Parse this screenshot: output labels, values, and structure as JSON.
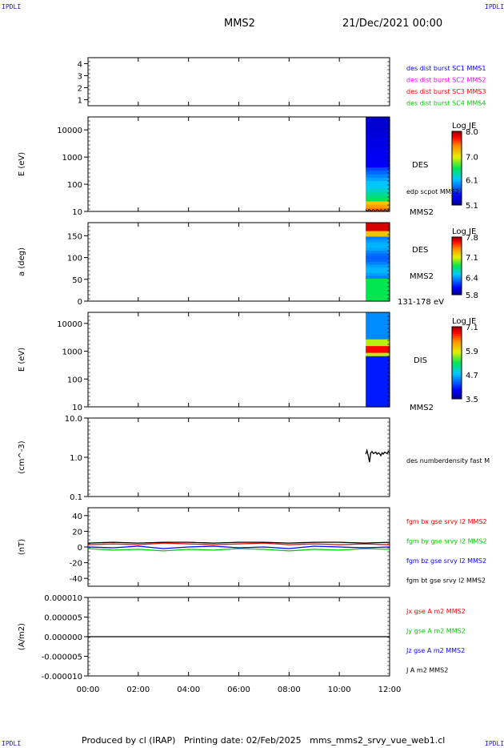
{
  "corners": {
    "tl": "IPDLI",
    "tr": "IPDLI",
    "bl": "IPDLI",
    "br": "IPDLI"
  },
  "header": {
    "spacecraft": "MMS2",
    "date": "21/Dec/2021 00:00"
  },
  "footer": {
    "text": "Produced by cl (IRAP)   Printing date: 02/Feb/2025   mms_mms2_srvy_vue_web1.cl"
  },
  "time_axis": {
    "ticks": [
      "00:00",
      "02:00",
      "04:00",
      "06:00",
      "08:00",
      "10:00",
      "12:00"
    ],
    "range_hours": [
      0,
      12
    ]
  },
  "colors": {
    "mms1": "#0000ff",
    "mms2": "#ff00ff",
    "mms3": "#ff0000",
    "mms4": "#00cc00",
    "bx": "#ff0000",
    "by": "#00cc00",
    "bz": "#0000ff",
    "bt": "#000000",
    "jx": "#ff0000",
    "jy": "#00cc00",
    "jz": "#0000ff",
    "j": "#000000"
  },
  "chart_data": [
    {
      "type": "line",
      "id": "availability",
      "ylim": [
        0.5,
        4.5
      ],
      "yticks": [
        "1",
        "2",
        "3",
        "4"
      ],
      "legend": [
        {
          "label": "des dist burst SC1 MMS1",
          "color": "#0000ff"
        },
        {
          "label": "des dist burst SC2 MMS2",
          "color": "#ff00ff"
        },
        {
          "label": "des dist burst SC3 MMS3",
          "color": "#ff0000"
        },
        {
          "label": "des dist burst SC4 MMS4",
          "color": "#00cc00"
        }
      ]
    },
    {
      "type": "heatmap",
      "id": "des-energy",
      "ylabel": "E (eV)",
      "yscale": "log",
      "ylim": [
        10,
        30000
      ],
      "yticks": [
        "10000",
        "1000",
        "100",
        "10"
      ],
      "data_window_hours": [
        11.05,
        12.0
      ],
      "labels": [
        "DES",
        "edp scpot MMS2",
        "MMS2"
      ],
      "colorbar": {
        "title": "Log JE",
        "ticks": [
          "8.0",
          "7.0",
          "6.1",
          "5.1"
        ],
        "range": [
          5.1,
          8.0
        ]
      }
    },
    {
      "type": "heatmap",
      "id": "des-pitch",
      "ylabel": "a (deg)",
      "ylim": [
        0,
        180
      ],
      "yticks": [
        "150",
        "100",
        "50",
        "0"
      ],
      "data_window_hours": [
        11.05,
        12.0
      ],
      "labels": [
        "DES",
        "MMS2",
        "131-178 eV"
      ],
      "colorbar": {
        "title": "Log JE",
        "ticks": [
          "7.8",
          "7.1",
          "6.4",
          "5.8"
        ],
        "range": [
          5.8,
          7.8
        ]
      }
    },
    {
      "type": "heatmap",
      "id": "dis-energy",
      "ylabel": "E (eV)",
      "yscale": "log",
      "ylim": [
        10,
        25000
      ],
      "yticks": [
        "10000",
        "1000",
        "100",
        "10"
      ],
      "data_window_hours": [
        11.05,
        12.0
      ],
      "labels": [
        "DIS",
        "MMS2"
      ],
      "colorbar": {
        "title": "Log JE",
        "ticks": [
          "7.1",
          "5.9",
          "4.7",
          "3.5"
        ],
        "range": [
          3.5,
          7.1
        ]
      }
    },
    {
      "type": "line",
      "id": "density",
      "ylabel": "(cm^-3)",
      "yscale": "log",
      "ylim": [
        0.1,
        10
      ],
      "yticks": [
        "10.0",
        "1.0",
        "0.1"
      ],
      "series": [
        {
          "name": "des numberdensity fast M",
          "color": "#000000",
          "x": [
            11.05,
            11.1,
            11.15,
            11.2,
            11.25,
            11.3,
            11.35,
            11.4,
            11.45,
            11.5,
            11.55,
            11.6,
            11.65,
            11.7,
            11.75,
            11.8,
            11.85,
            11.9,
            11.95,
            12.0
          ],
          "y": [
            1.2,
            1.5,
            1.1,
            0.75,
            1.3,
            1.4,
            1.25,
            1.3,
            1.35,
            1.2,
            1.3,
            1.25,
            1.1,
            1.3,
            1.2,
            1.35,
            1.3,
            1.25,
            1.4,
            1.3
          ]
        }
      ]
    },
    {
      "type": "line",
      "id": "magnetic-field",
      "ylabel": "(nT)",
      "ylim": [
        -50,
        50
      ],
      "yticks": [
        "40",
        "20",
        "0",
        "-20",
        "-40"
      ],
      "series": [
        {
          "name": "fgm bx gse srvy l2 MMS2",
          "color": "#ff0000",
          "x": [
            0,
            1,
            2,
            3,
            4,
            5,
            6,
            7,
            8,
            9,
            10,
            11,
            12
          ],
          "y": [
            3,
            4,
            3,
            5,
            4,
            3,
            4,
            5,
            3,
            4,
            3,
            4,
            3
          ]
        },
        {
          "name": "fgm by gse srvy l2 MMS2",
          "color": "#00cc00",
          "x": [
            0,
            1,
            2,
            3,
            4,
            5,
            6,
            7,
            8,
            9,
            10,
            11,
            12
          ],
          "y": [
            -2,
            -4,
            -3,
            -5,
            -3,
            -4,
            -2,
            -3,
            -5,
            -3,
            -4,
            -2,
            -3
          ]
        },
        {
          "name": "fgm bz gse srvy l2 MMS2",
          "color": "#0000ff",
          "x": [
            0,
            1,
            2,
            3,
            4,
            5,
            6,
            7,
            8,
            9,
            10,
            11,
            12
          ],
          "y": [
            0,
            -1,
            1,
            -2,
            0,
            1,
            -1,
            0,
            -2,
            1,
            0,
            -1,
            0
          ]
        },
        {
          "name": "fgm bt gse srvy l2 MMS2",
          "color": "#000000",
          "x": [
            0,
            1,
            2,
            3,
            4,
            5,
            6,
            7,
            8,
            9,
            10,
            11,
            12
          ],
          "y": [
            5,
            6,
            5,
            6,
            6,
            5,
            6,
            6,
            5,
            6,
            6,
            5,
            6
          ]
        }
      ]
    },
    {
      "type": "line",
      "id": "current-density",
      "ylabel": "(A/m2)",
      "ylim": [
        -1e-05,
        1e-05
      ],
      "yticks": [
        "0.000010",
        "0.000005",
        "0.000000",
        "-0.000005",
        "-0.000010"
      ],
      "series": [
        {
          "name": "Jx gse A m2 MMS2",
          "color": "#ff0000"
        },
        {
          "name": "Jy gse A m2 MMS2",
          "color": "#00cc00"
        },
        {
          "name": "Jz gse A m2 MMS2",
          "color": "#0000ff"
        },
        {
          "name": "J A m2 MMS2",
          "color": "#000000",
          "x": [
            0,
            1,
            2,
            3,
            4,
            5,
            6,
            7,
            8,
            9,
            10,
            11,
            12
          ],
          "y": [
            0,
            0,
            0,
            0,
            0,
            0,
            0,
            0,
            0,
            0,
            0,
            0,
            0
          ]
        }
      ]
    }
  ]
}
